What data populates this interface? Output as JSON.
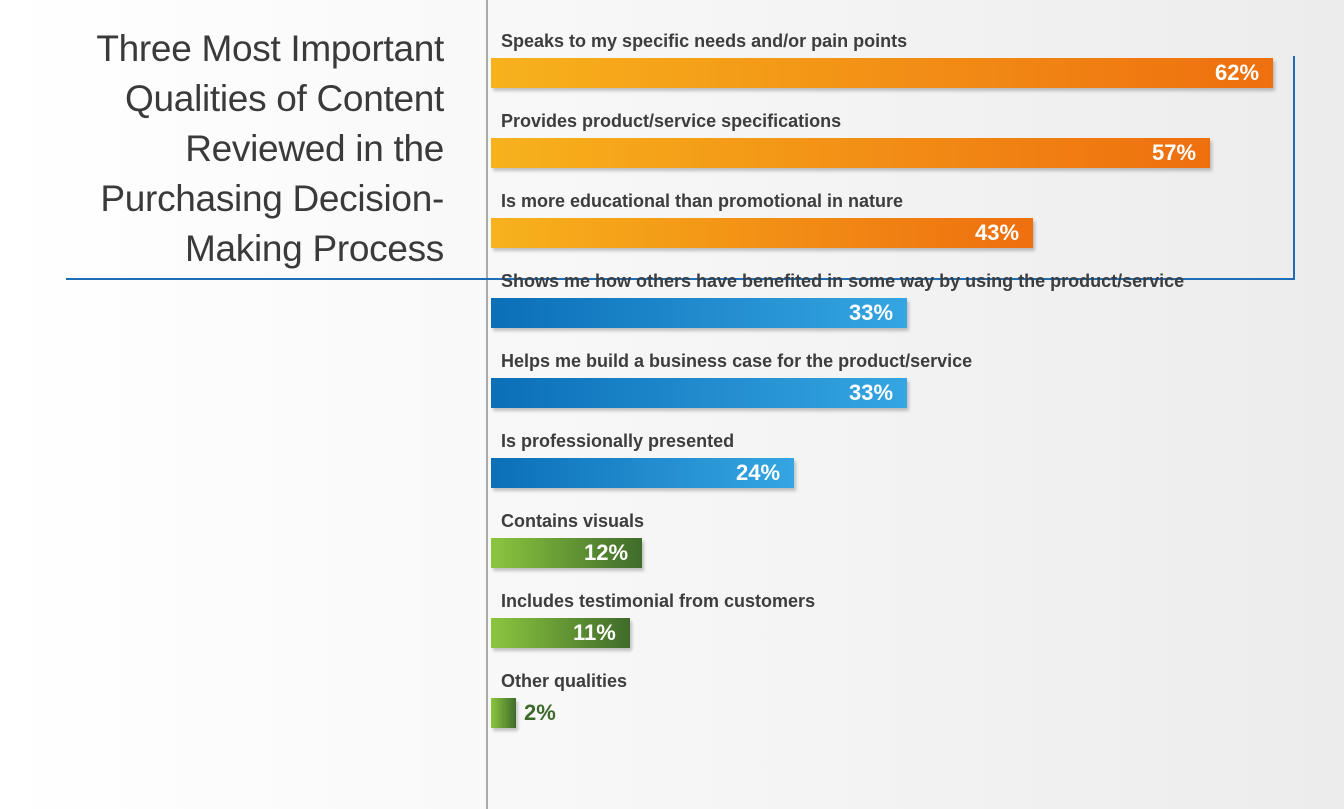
{
  "title_lines": [
    "Three Most Important",
    "Qualities of Content",
    "Reviewed in the",
    "Purchasing Decision-",
    "Making Process"
  ],
  "colors": {
    "orange": [
      "#f7b21c",
      "#ee6f0f"
    ],
    "blue": [
      "#0b6fb8",
      "#35a6e2"
    ],
    "green": [
      "#8cc63f",
      "#3f6b2a"
    ],
    "rule_blue": "#1f6db5"
  },
  "chart_data": {
    "type": "bar",
    "orientation": "horizontal",
    "unit": "%",
    "xlim": [
      0,
      70
    ],
    "categories": [
      "Speaks to my specific needs and/or pain points",
      "Provides product/service specifications",
      "Is more educational than promotional in nature",
      "Shows me how others have benefited in some way by using the product/service",
      "Helps me build a business case for the product/service",
      "Is professionally presented",
      "Contains visuals",
      "Includes testimonial from customers",
      "Other qualities"
    ],
    "values": [
      62,
      57,
      43,
      33,
      33,
      24,
      12,
      11,
      2
    ],
    "labels": [
      "62%",
      "57%",
      "43%",
      "33%",
      "33%",
      "24%",
      "12%",
      "11%",
      "2%"
    ],
    "color_groups": [
      "orange",
      "orange",
      "orange",
      "blue",
      "blue",
      "blue",
      "green",
      "green",
      "green"
    ]
  }
}
